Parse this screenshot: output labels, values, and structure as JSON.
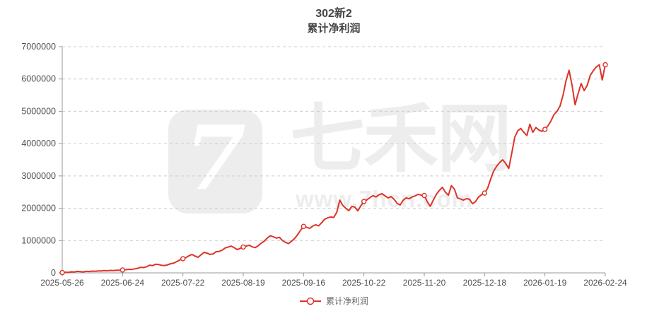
{
  "title": {
    "line1": "302新2",
    "line2": "累计净利润"
  },
  "legend": {
    "label": "累计净利润"
  },
  "watermark": {
    "logo_text": "7",
    "site_name": "七禾网",
    "site_url": "www.7hcn.com"
  },
  "colors": {
    "series": "#dd3328",
    "grid": "#cccccc",
    "axis": "#999999",
    "axis_label": "#4f4f4f",
    "title_text": "#464646",
    "legend_text": "#666666",
    "watermark": "#ededed",
    "background": "#ffffff"
  },
  "chart_data": {
    "type": "line",
    "title": "302新2",
    "subtitle": "累计净利润",
    "series_name": "累计净利润",
    "legend_position": "bottom-center",
    "grid": "horizontal-dashed",
    "ylim": [
      0,
      7000000
    ],
    "y_tick_step": 1000000,
    "y_tick_labels": [
      "0",
      "1000000",
      "2000000",
      "3000000",
      "4000000",
      "5000000",
      "6000000",
      "7000000"
    ],
    "x_tick_labels": [
      "2025-05-26",
      "2025-06-24",
      "2025-07-22",
      "2025-08-19",
      "2025-09-16",
      "2025-10-22",
      "2025-11-20",
      "2025-12-18",
      "2026-01-19",
      "2026-02-24"
    ],
    "x_tick_interval": 20,
    "marker": "open-circle-at-each-tick-point",
    "values": [
      8000,
      20000,
      15000,
      32000,
      28000,
      45000,
      38000,
      30000,
      48000,
      42000,
      55000,
      50000,
      62000,
      58000,
      70000,
      64000,
      76000,
      70000,
      84000,
      78000,
      90000,
      98000,
      110000,
      104000,
      125000,
      140000,
      172000,
      165000,
      190000,
      238000,
      225000,
      268000,
      255000,
      232000,
      228000,
      252000,
      285000,
      305000,
      350000,
      400000,
      440000,
      470000,
      530000,
      570000,
      520000,
      480000,
      560000,
      635000,
      610000,
      570000,
      585000,
      655000,
      665000,
      700000,
      770000,
      800000,
      830000,
      780000,
      720000,
      760000,
      800000,
      830000,
      855000,
      805000,
      780000,
      845000,
      920000,
      985000,
      1080000,
      1150000,
      1115000,
      1075000,
      1100000,
      1000000,
      945000,
      905000,
      980000,
      1060000,
      1180000,
      1320000,
      1440000,
      1410000,
      1375000,
      1445000,
      1490000,
      1455000,
      1555000,
      1660000,
      1705000,
      1730000,
      1715000,
      1880000,
      2250000,
      2090000,
      1995000,
      1925000,
      2060000,
      2030000,
      1920000,
      2080000,
      2210000,
      2260000,
      2330000,
      2390000,
      2350000,
      2420000,
      2450000,
      2385000,
      2320000,
      2360000,
      2280000,
      2150000,
      2100000,
      2245000,
      2320000,
      2295000,
      2350000,
      2385000,
      2430000,
      2405000,
      2395000,
      2200000,
      2060000,
      2250000,
      2430000,
      2550000,
      2650000,
      2495000,
      2400000,
      2700000,
      2590000,
      2320000,
      2285000,
      2250000,
      2300000,
      2275000,
      2140000,
      2205000,
      2350000,
      2420000,
      2470000,
      2620000,
      2900000,
      3150000,
      3300000,
      3420000,
      3500000,
      3385000,
      3230000,
      3700000,
      4200000,
      4400000,
      4470000,
      4350000,
      4250000,
      4600000,
      4350000,
      4500000,
      4420000,
      4380000,
      4440000,
      4550000,
      4700000,
      4900000,
      5000000,
      5160000,
      5500000,
      5950000,
      6270000,
      5800000,
      5200000,
      5550000,
      5860000,
      5640000,
      5800000,
      6110000,
      6250000,
      6370000,
      6440000,
      5970000,
      6440000
    ]
  }
}
